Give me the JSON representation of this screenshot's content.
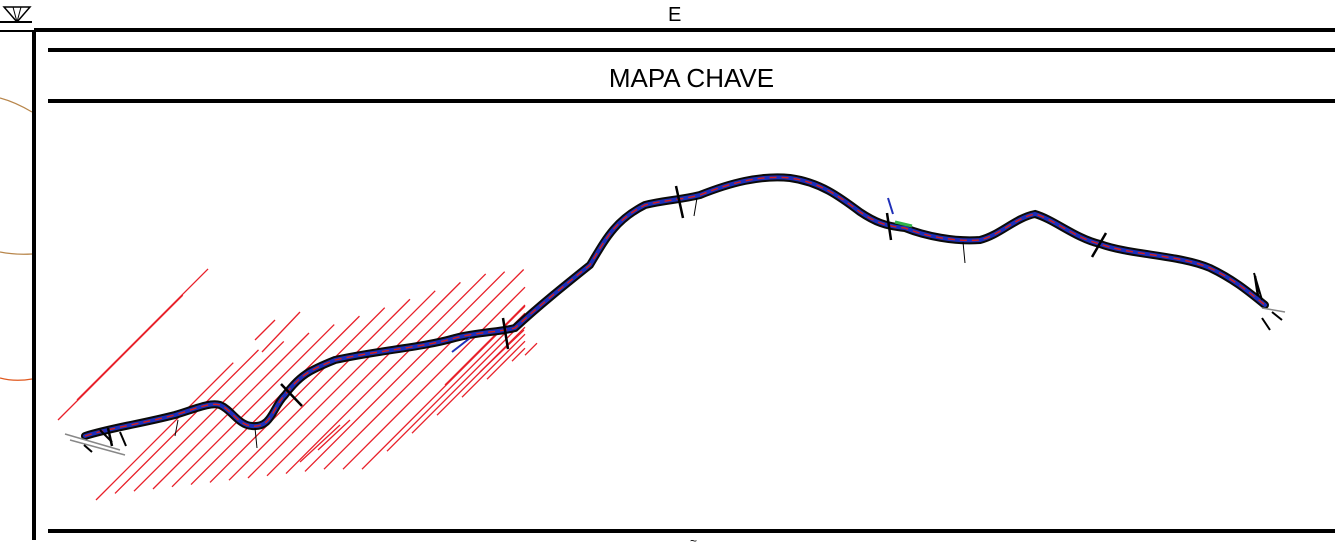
{
  "sheet": {
    "top_label": "E",
    "title": "MAPA CHAVE",
    "bottom_stub": "~"
  },
  "colors": {
    "frame": "#000000",
    "road_outline": "#0a0a0a",
    "road_inner": "#1f2fb8",
    "road_center": "#d62020",
    "hatch": "#e8202a",
    "contour_brown": "#b8864b",
    "contour_orange": "#e0581e",
    "accent_green": "#2fb34a"
  },
  "map": {
    "features": [
      "alignment-route",
      "hatched-area",
      "section-markers",
      "contour-lines"
    ],
    "marker_count": 7
  }
}
